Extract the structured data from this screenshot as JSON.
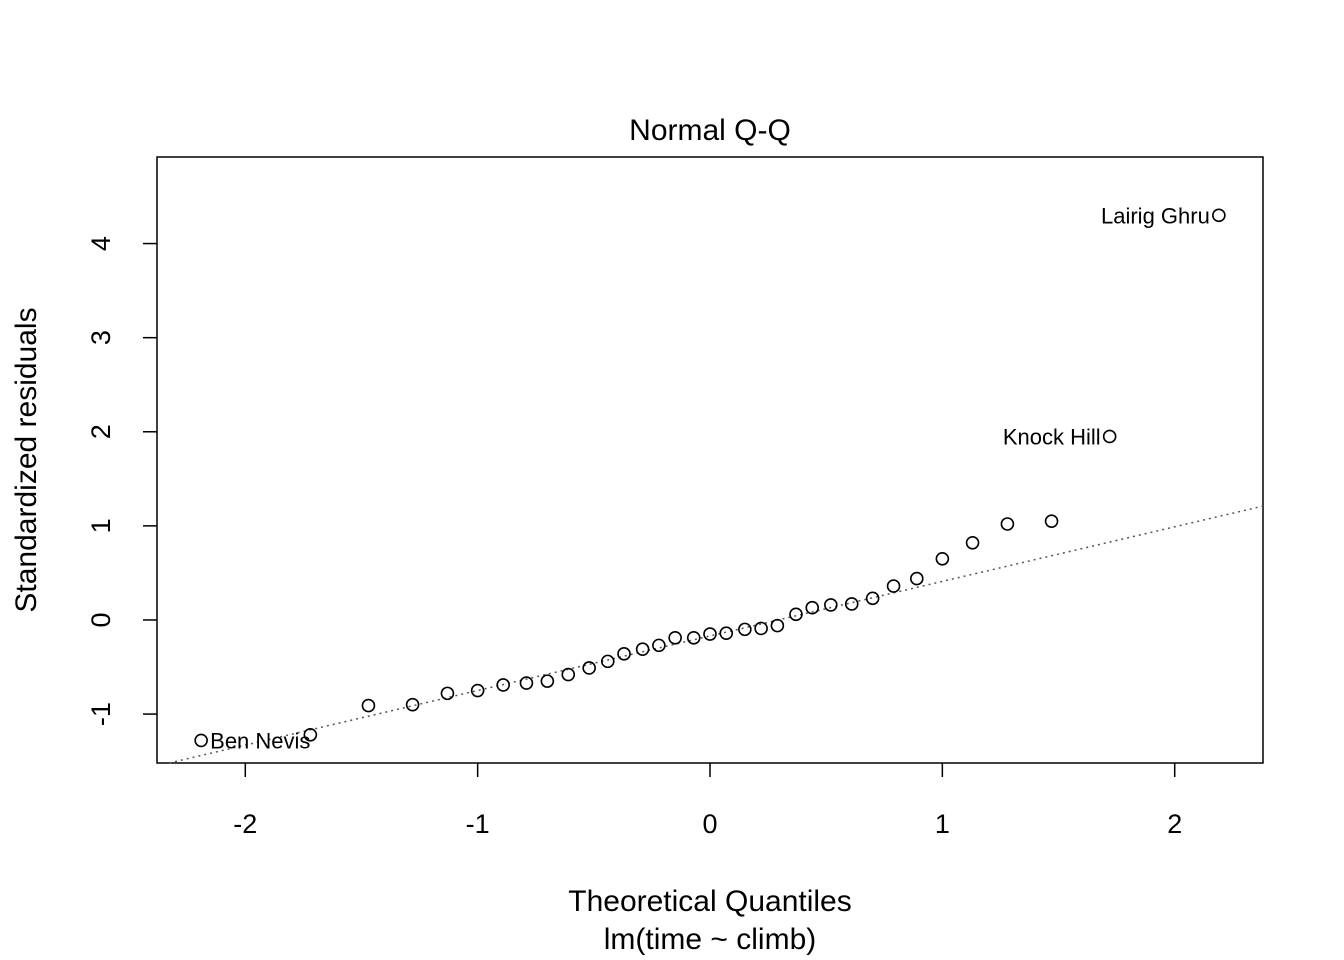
{
  "chart_data": {
    "type": "scatter",
    "title": "Normal Q-Q",
    "xlabel": "Theoretical Quantiles",
    "subtitle": "lm(time ~ climb)",
    "ylabel": "Standardized residuals",
    "xlim": [
      -2.38,
      2.38
    ],
    "ylim": [
      -1.52,
      4.92
    ],
    "x_ticks": [
      -2,
      -1,
      0,
      1,
      2
    ],
    "y_ticks": [
      -1,
      0,
      1,
      2,
      3,
      4
    ],
    "x_tick_labels": [
      "-2",
      "-1",
      "0",
      "1",
      "2"
    ],
    "y_tick_labels": [
      "-1",
      "0",
      "1",
      "2",
      "3",
      "4"
    ],
    "grid": false,
    "reference_line": {
      "intercept": -0.17,
      "slope": 0.58,
      "style": "dotted",
      "color": "#555555"
    },
    "points": [
      {
        "x": -2.19,
        "y": -1.28
      },
      {
        "x": -1.72,
        "y": -1.22
      },
      {
        "x": -1.47,
        "y": -0.91
      },
      {
        "x": -1.28,
        "y": -0.9
      },
      {
        "x": -1.13,
        "y": -0.78
      },
      {
        "x": -1.0,
        "y": -0.75
      },
      {
        "x": -0.89,
        "y": -0.69
      },
      {
        "x": -0.79,
        "y": -0.67
      },
      {
        "x": -0.7,
        "y": -0.65
      },
      {
        "x": -0.61,
        "y": -0.58
      },
      {
        "x": -0.52,
        "y": -0.51
      },
      {
        "x": -0.44,
        "y": -0.44
      },
      {
        "x": -0.37,
        "y": -0.36
      },
      {
        "x": -0.29,
        "y": -0.31
      },
      {
        "x": -0.22,
        "y": -0.27
      },
      {
        "x": -0.15,
        "y": -0.19
      },
      {
        "x": -0.07,
        "y": -0.19
      },
      {
        "x": 0.0,
        "y": -0.15
      },
      {
        "x": 0.07,
        "y": -0.14
      },
      {
        "x": 0.15,
        "y": -0.1
      },
      {
        "x": 0.22,
        "y": -0.09
      },
      {
        "x": 0.29,
        "y": -0.06
      },
      {
        "x": 0.37,
        "y": 0.06
      },
      {
        "x": 0.44,
        "y": 0.13
      },
      {
        "x": 0.52,
        "y": 0.16
      },
      {
        "x": 0.61,
        "y": 0.17
      },
      {
        "x": 0.7,
        "y": 0.23
      },
      {
        "x": 0.79,
        "y": 0.36
      },
      {
        "x": 0.89,
        "y": 0.44
      },
      {
        "x": 1.0,
        "y": 0.65
      },
      {
        "x": 1.13,
        "y": 0.82
      },
      {
        "x": 1.28,
        "y": 1.02
      },
      {
        "x": 1.47,
        "y": 1.05
      },
      {
        "x": 1.72,
        "y": 1.95
      },
      {
        "x": 2.19,
        "y": 4.3
      }
    ],
    "annotations": [
      {
        "text": "Ben Nevis",
        "x": -2.19,
        "y": -1.28,
        "anchor": "start"
      },
      {
        "text": "Knock Hill",
        "x": 1.72,
        "y": 1.95,
        "anchor": "end"
      },
      {
        "text": "Lairig Ghru",
        "x": 2.19,
        "y": 4.3,
        "anchor": "end"
      }
    ]
  }
}
